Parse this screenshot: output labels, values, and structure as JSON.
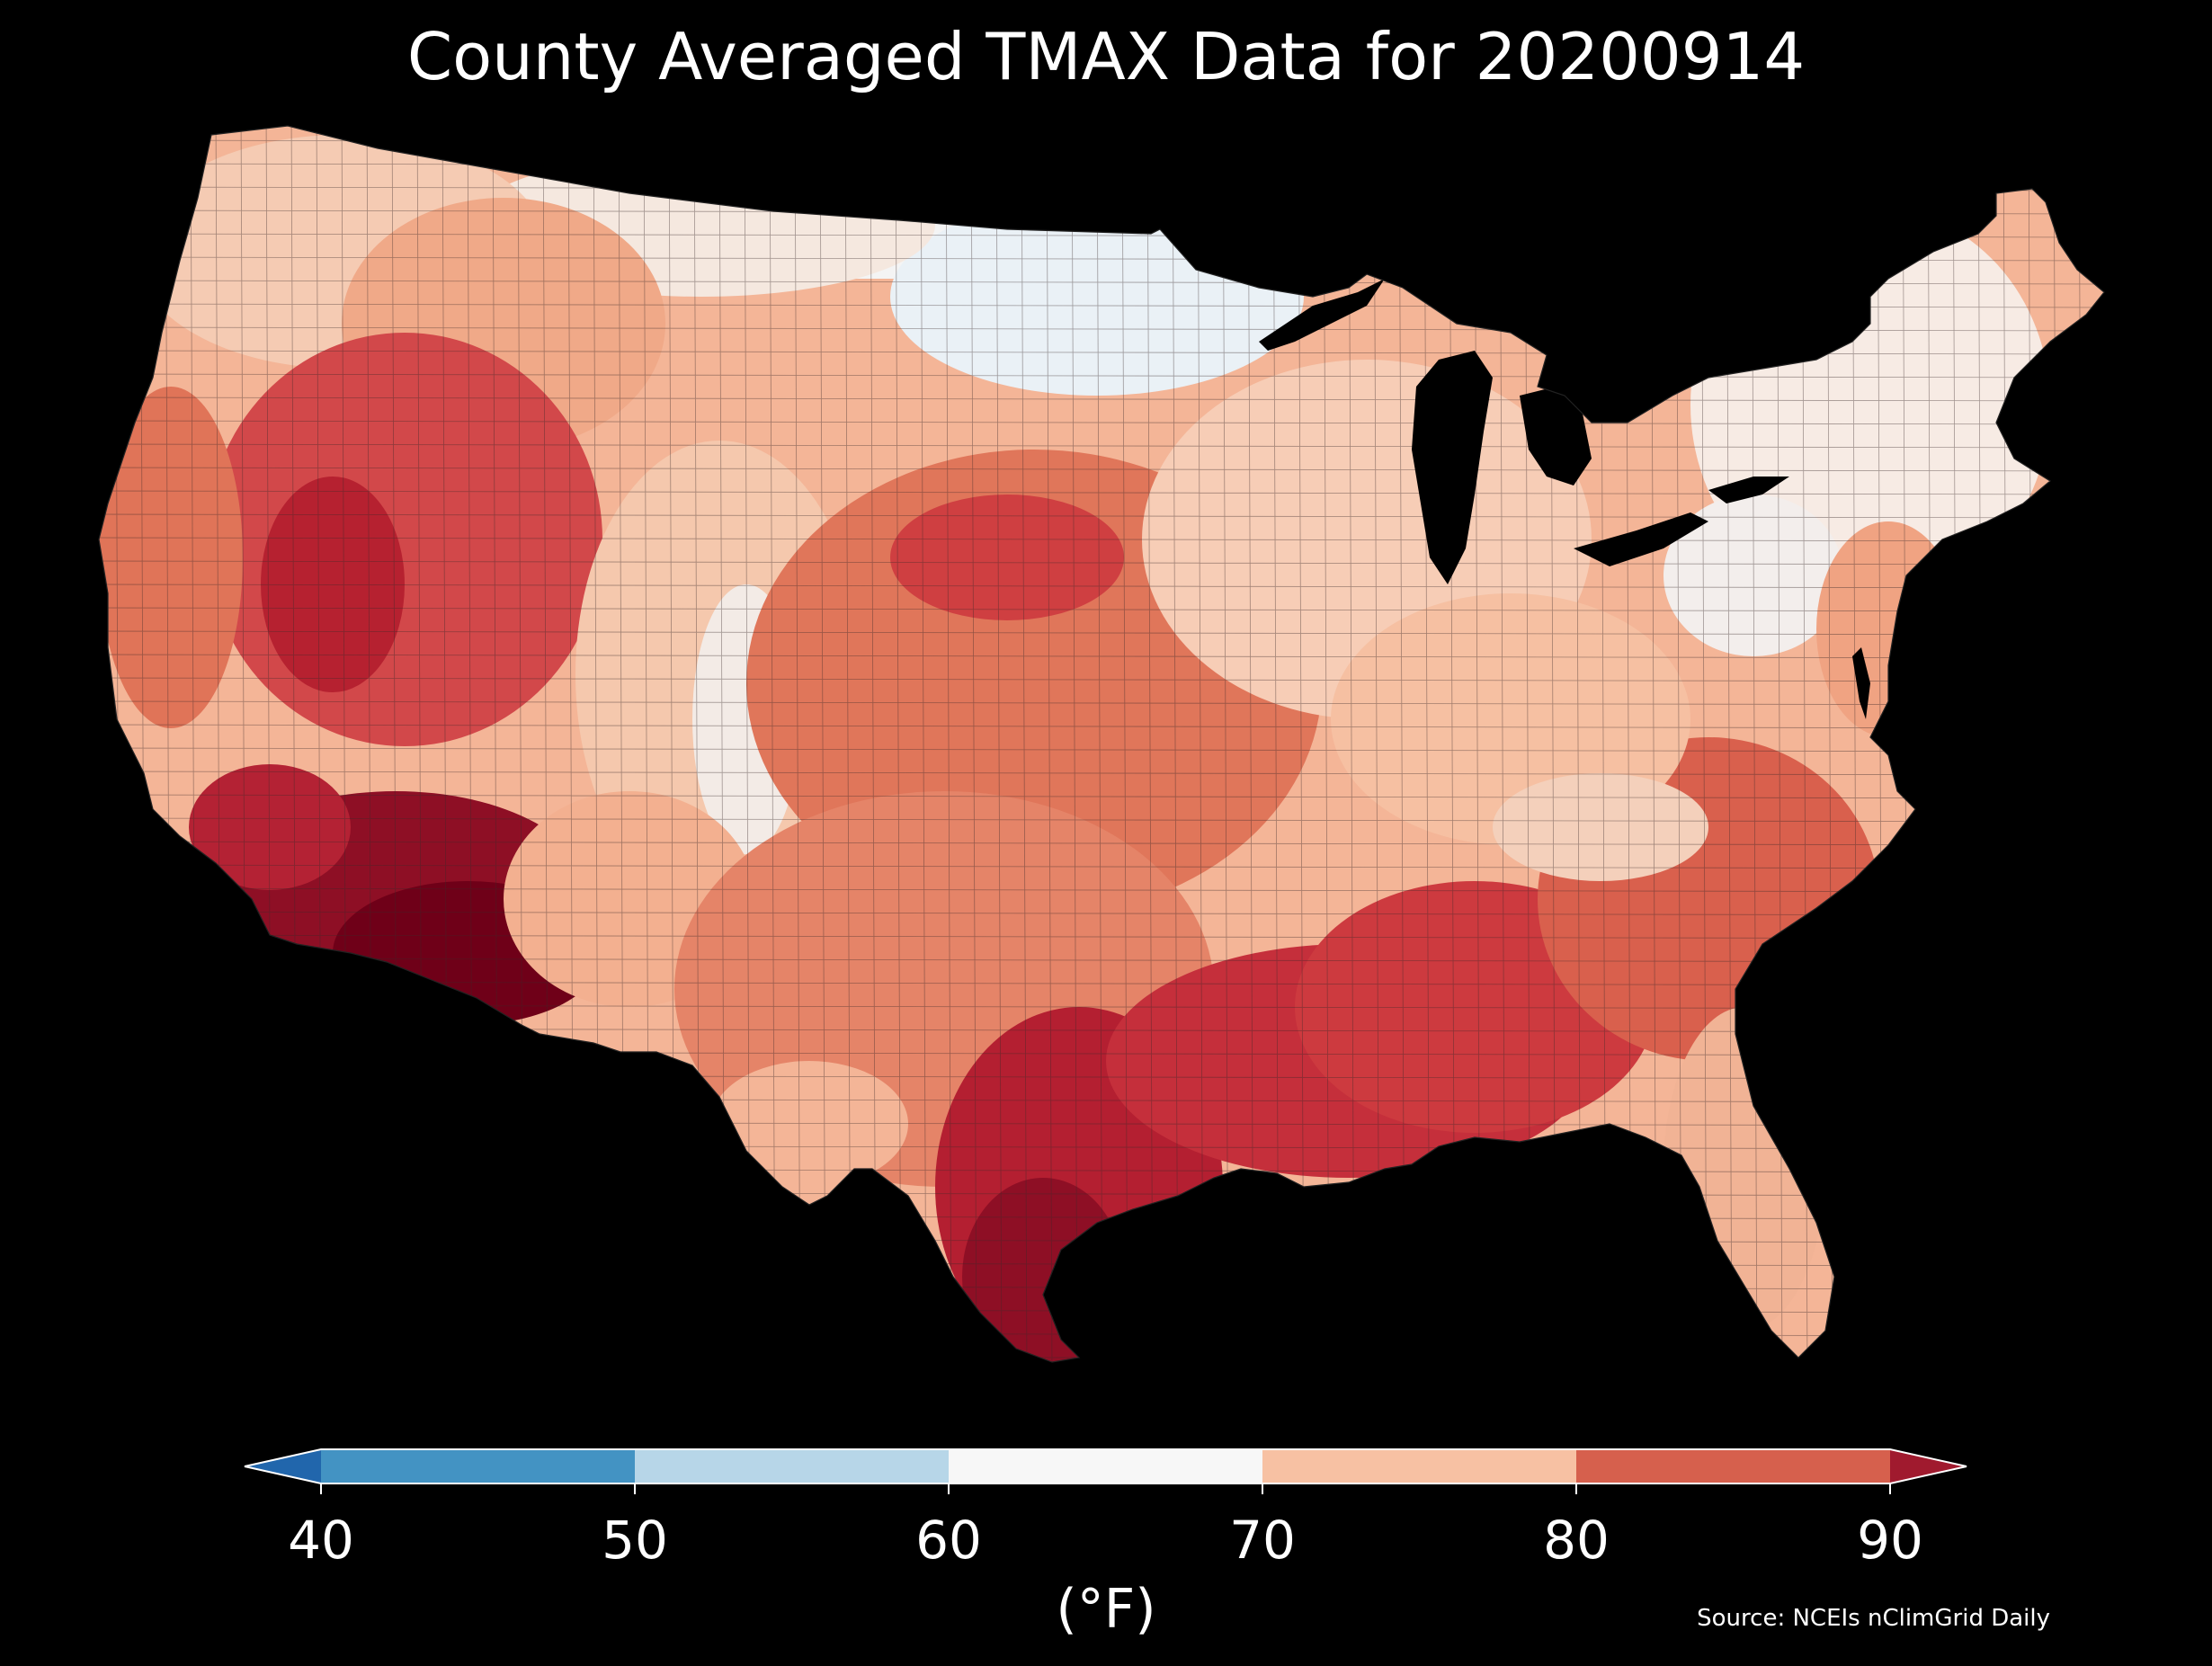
{
  "title": "County Averaged TMAX Data for 20200914",
  "source": "Source: NCEIs nClimGrid Daily",
  "colorbar": {
    "units": "(°F)",
    "ticks": [
      "40",
      "50",
      "60",
      "70",
      "80",
      "90"
    ],
    "bins": [
      {
        "range": "<40",
        "color": "#2166ac"
      },
      {
        "range": "40-50",
        "color": "#4393c3"
      },
      {
        "range": "50-60",
        "color": "#b7d6e8"
      },
      {
        "range": "60-70",
        "color": "#f7f7f7"
      },
      {
        "range": "70-80",
        "color": "#f7c1a3"
      },
      {
        "range": "80-90",
        "color": "#d6604d"
      },
      {
        "range": ">90",
        "color": "#a01a2e"
      }
    ]
  },
  "map": {
    "region": "Contiguous United States",
    "background": "#000000",
    "water": "#000000",
    "county_border_color": "#333333",
    "regions": [
      {
        "name": "upper-midwest-north",
        "color": "#eef3f6"
      },
      {
        "name": "northern-plains",
        "color": "#f7d3bf"
      },
      {
        "name": "pacific-northwest",
        "color": "#f3a784"
      },
      {
        "name": "great-basin",
        "color": "#d0393d"
      },
      {
        "name": "central-plains",
        "color": "#de6a52"
      },
      {
        "name": "southwest-desert",
        "color": "#8c0e24"
      },
      {
        "name": "gulf-coast",
        "color": "#c0283a"
      },
      {
        "name": "northeast",
        "color": "#f8ede6"
      },
      {
        "name": "midwest-great-lakes",
        "color": "#f5d2bd"
      },
      {
        "name": "southeast",
        "color": "#e07a5f"
      },
      {
        "name": "appalachia",
        "color": "#f4c0a4"
      },
      {
        "name": "south-texas",
        "color": "#9e1530"
      }
    ]
  }
}
